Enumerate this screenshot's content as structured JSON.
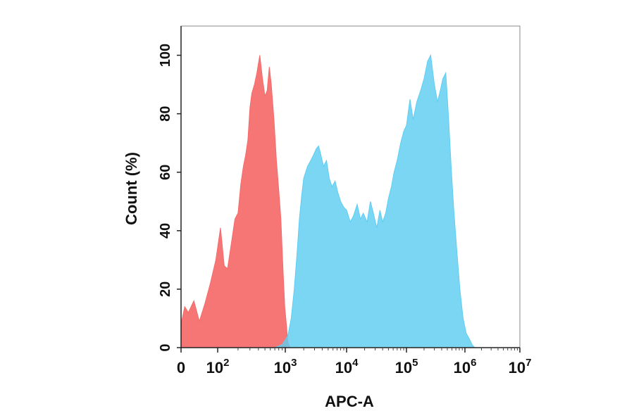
{
  "chart_data": {
    "type": "area",
    "xlabel": "APC-A",
    "ylabel": "Count  (%)",
    "x_scale": "biexponential",
    "ylim": [
      0,
      110
    ],
    "y_ticks": [
      0,
      20,
      40,
      60,
      80,
      100
    ],
    "x_ticks": [
      {
        "value": 0,
        "base": "0",
        "exp": ""
      },
      {
        "value": 100,
        "base": "10",
        "exp": "2"
      },
      {
        "value": 1000,
        "base": "10",
        "exp": "3"
      },
      {
        "value": 10000,
        "base": "10",
        "exp": "4"
      },
      {
        "value": 100000,
        "base": "10",
        "exp": "5"
      },
      {
        "value": 1000000,
        "base": "10",
        "exp": "6"
      },
      {
        "value": 10000000,
        "base": "10",
        "exp": "7"
      }
    ],
    "series": [
      {
        "color": "#f56a6a",
        "fill_opacity": 0.92,
        "points": [
          [
            0,
            8
          ],
          [
            10,
            14
          ],
          [
            20,
            12
          ],
          [
            35,
            16
          ],
          [
            50,
            9
          ],
          [
            65,
            15
          ],
          [
            80,
            22
          ],
          [
            95,
            30
          ],
          [
            110,
            41
          ],
          [
            125,
            28
          ],
          [
            140,
            27
          ],
          [
            160,
            36
          ],
          [
            180,
            44
          ],
          [
            200,
            46
          ],
          [
            220,
            56
          ],
          [
            240,
            62
          ],
          [
            260,
            66
          ],
          [
            280,
            71
          ],
          [
            300,
            82
          ],
          [
            320,
            87
          ],
          [
            350,
            90
          ],
          [
            380,
            94
          ],
          [
            420,
            100
          ],
          [
            460,
            92
          ],
          [
            500,
            86
          ],
          [
            540,
            88
          ],
          [
            580,
            96
          ],
          [
            620,
            90
          ],
          [
            680,
            78
          ],
          [
            740,
            64
          ],
          [
            800,
            54
          ],
          [
            860,
            44
          ],
          [
            920,
            28
          ],
          [
            980,
            14
          ],
          [
            1040,
            8
          ],
          [
            1100,
            2
          ],
          [
            1200,
            0
          ]
        ]
      },
      {
        "color": "#5ecdf2",
        "fill_opacity": 0.82,
        "points": [
          [
            0,
            0
          ],
          [
            700,
            0
          ],
          [
            900,
            1
          ],
          [
            1100,
            4
          ],
          [
            1250,
            10
          ],
          [
            1400,
            20
          ],
          [
            1550,
            32
          ],
          [
            1700,
            44
          ],
          [
            1850,
            52
          ],
          [
            2000,
            58
          ],
          [
            2300,
            62
          ],
          [
            2600,
            64
          ],
          [
            2900,
            66
          ],
          [
            3200,
            68
          ],
          [
            3500,
            69
          ],
          [
            3800,
            66
          ],
          [
            4200,
            62
          ],
          [
            4700,
            64
          ],
          [
            5200,
            58
          ],
          [
            5800,
            55
          ],
          [
            6500,
            57
          ],
          [
            7200,
            53
          ],
          [
            8000,
            50
          ],
          [
            9000,
            48
          ],
          [
            10000,
            47
          ],
          [
            11500,
            43
          ],
          [
            13000,
            45
          ],
          [
            15000,
            49
          ],
          [
            17000,
            44
          ],
          [
            19000,
            46
          ],
          [
            22000,
            43
          ],
          [
            25000,
            50
          ],
          [
            28000,
            46
          ],
          [
            32000,
            41
          ],
          [
            36000,
            47
          ],
          [
            40000,
            43
          ],
          [
            45000,
            46
          ],
          [
            50000,
            51
          ],
          [
            56000,
            55
          ],
          [
            62000,
            60
          ],
          [
            70000,
            64
          ],
          [
            80000,
            70
          ],
          [
            90000,
            74
          ],
          [
            100000,
            76
          ],
          [
            115000,
            85
          ],
          [
            130000,
            78
          ],
          [
            150000,
            84
          ],
          [
            175000,
            88
          ],
          [
            200000,
            92
          ],
          [
            230000,
            98
          ],
          [
            260000,
            100
          ],
          [
            300000,
            90
          ],
          [
            340000,
            84
          ],
          [
            380000,
            88
          ],
          [
            420000,
            92
          ],
          [
            470000,
            94
          ],
          [
            520000,
            80
          ],
          [
            580000,
            62
          ],
          [
            640000,
            48
          ],
          [
            720000,
            34
          ],
          [
            820000,
            20
          ],
          [
            930000,
            10
          ],
          [
            1050000,
            5
          ],
          [
            1200000,
            3
          ],
          [
            1350000,
            1
          ],
          [
            1500000,
            0
          ]
        ]
      }
    ]
  }
}
